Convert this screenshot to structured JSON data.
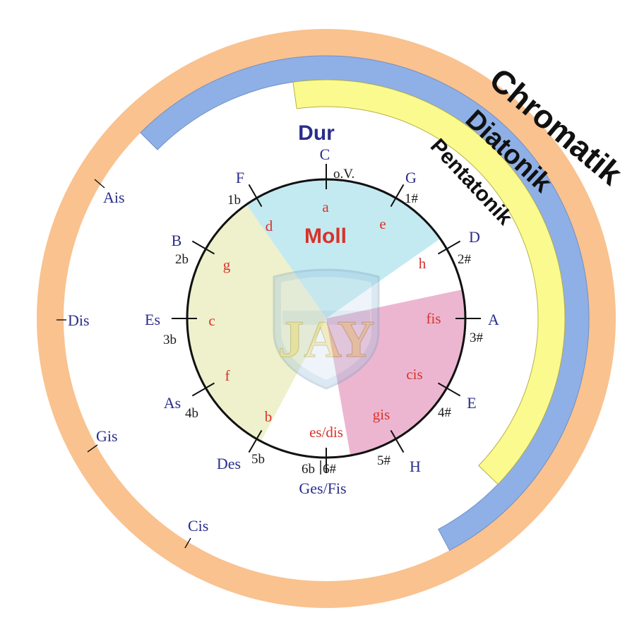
{
  "rings": {
    "chromatic": "Chromatik",
    "diatonic": "Diatonik",
    "pentatonic": "Pentatonik"
  },
  "center": {
    "major_title": "Dur",
    "minor_title": "Moll",
    "logo_text": "JAY"
  },
  "colors": {
    "chromatic_ring": "#f9c28f",
    "diatonic_ring": "#8eb0e6",
    "pentatonic_ring": "#fbfa8e",
    "sector_blue": "#b9e6ef",
    "sector_olive": "#ecefc6",
    "sector_pink": "#e9a9c9",
    "major_text": "#2a2d8c",
    "minor_text": "#d8322a"
  },
  "keys": [
    {
      "major": "C",
      "minor": "a",
      "sig": "o.V."
    },
    {
      "major": "G",
      "minor": "e",
      "sig": "1#"
    },
    {
      "major": "D",
      "minor": "h",
      "sig": "2#"
    },
    {
      "major": "A",
      "minor": "fis",
      "sig": "3#"
    },
    {
      "major": "E",
      "minor": "cis",
      "sig": "4#"
    },
    {
      "major": "H",
      "minor": "gis",
      "sig": "5#"
    },
    {
      "major": "Ges/Fis",
      "minor": "es/dis",
      "sig": "6b",
      "sig2": "6#"
    },
    {
      "major": "Des",
      "minor": "b",
      "sig": "5b"
    },
    {
      "major": "As",
      "minor": "f",
      "sig": "4b"
    },
    {
      "major": "Es",
      "minor": "c",
      "sig": "3b"
    },
    {
      "major": "B",
      "minor": "g",
      "sig": "2b"
    },
    {
      "major": "F",
      "minor": "d",
      "sig": "1b"
    }
  ],
  "chromatic_notes": [
    "Ais",
    "Dis",
    "Gis",
    "Cis"
  ]
}
